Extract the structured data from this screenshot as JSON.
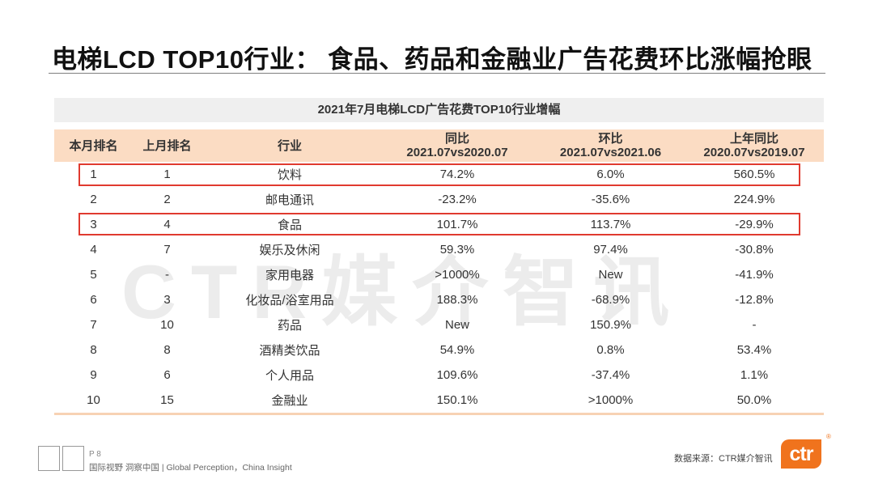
{
  "title": "电梯LCD TOP10行业： 食品、药品和金融业广告花费环比涨幅抢眼",
  "watermark": "CTR媒介智讯",
  "table": {
    "title": "2021年7月电梯LCD广告花费TOP10行业增幅",
    "headers": [
      {
        "line1": "本月排名",
        "line2": ""
      },
      {
        "line1": "上月排名",
        "line2": ""
      },
      {
        "line1": "行业",
        "line2": ""
      },
      {
        "line1": "同比",
        "line2": "2021.07vs2020.07"
      },
      {
        "line1": "环比",
        "line2": "2021.07vs2021.06"
      },
      {
        "line1": "上年同比",
        "line2": "2020.07vs2019.07"
      }
    ],
    "rows": [
      [
        "1",
        "1",
        "饮料",
        "74.2%",
        "6.0%",
        "560.5%"
      ],
      [
        "2",
        "2",
        "邮电通讯",
        "-23.2%",
        "-35.6%",
        "224.9%"
      ],
      [
        "3",
        "4",
        "食品",
        "101.7%",
        "113.7%",
        "-29.9%"
      ],
      [
        "4",
        "7",
        "娱乐及休闲",
        "59.3%",
        "97.4%",
        "-30.8%"
      ],
      [
        "5",
        "-",
        "家用电器",
        ">1000%",
        "New",
        "-41.9%"
      ],
      [
        "6",
        "3",
        "化妆品/浴室用品",
        "188.3%",
        "-68.9%",
        "-12.8%"
      ],
      [
        "7",
        "10",
        "药品",
        "New",
        "150.9%",
        "-"
      ],
      [
        "8",
        "8",
        "酒精类饮品",
        "54.9%",
        "0.8%",
        "53.4%"
      ],
      [
        "9",
        "6",
        "个人用品",
        "109.6%",
        "-37.4%",
        "1.1%"
      ],
      [
        "10",
        "15",
        "金融业",
        "150.1%",
        ">1000%",
        "50.0%"
      ]
    ],
    "highlight_color": "#e03a2f"
  },
  "footer": {
    "page": "P 8",
    "slogan": "国际视野  洞察中国 | Global Perception，China Insight",
    "source": "数据来源：CTR媒介智讯",
    "logo_text": "ctr",
    "logo_reg": "®",
    "badge_1": "",
    "badge_2": ""
  },
  "colors": {
    "header_bg": "#fbdcc3",
    "logo": "#f0731d"
  }
}
